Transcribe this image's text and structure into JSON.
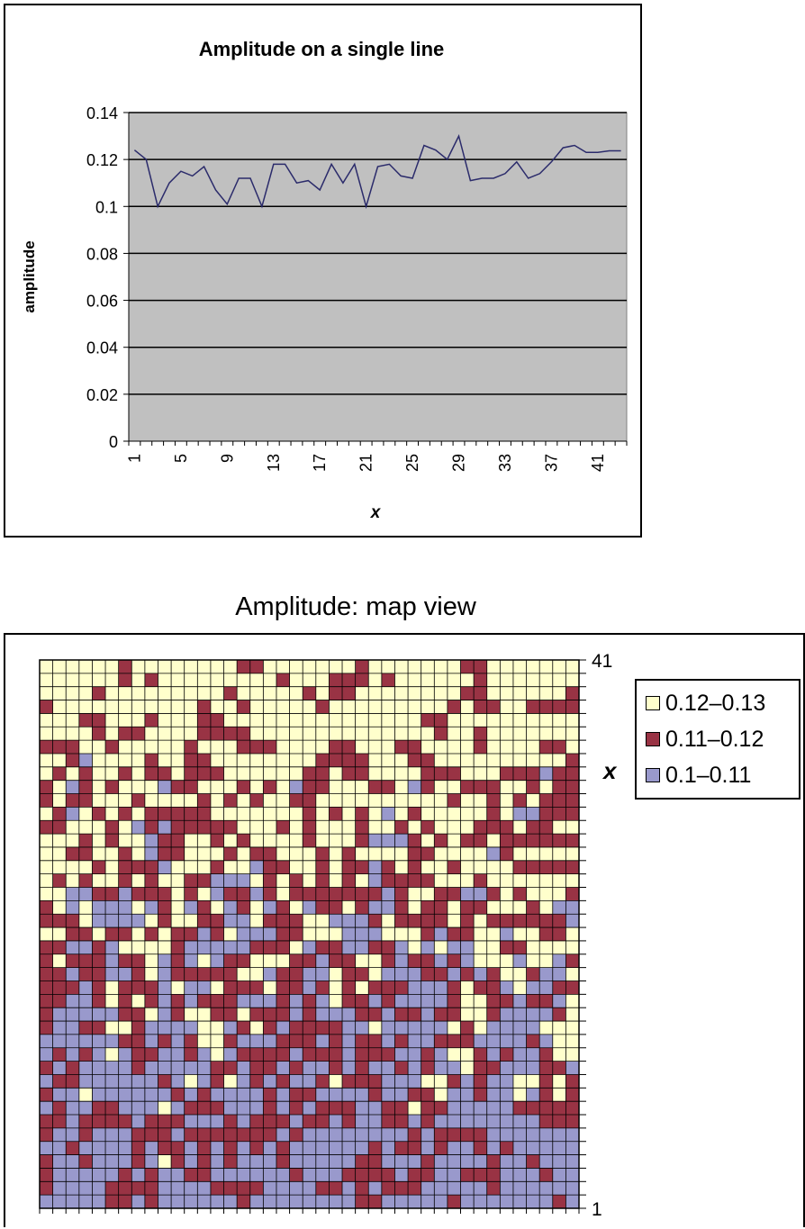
{
  "chart_data": [
    {
      "type": "line",
      "title": "Amplitude on a single line",
      "xlabel": "x",
      "ylabel": "amplitude",
      "ylim": [
        0,
        0.14
      ],
      "yticks": [
        "0",
        "0.02",
        "0.04",
        "0.06",
        "0.08",
        "0.1",
        "0.12",
        "0.14"
      ],
      "xticks": [
        "1",
        "5",
        "9",
        "13",
        "17",
        "21",
        "25",
        "29",
        "33",
        "37",
        "41"
      ],
      "grid": true,
      "x": [
        1,
        2,
        3,
        4,
        5,
        6,
        7,
        8,
        9,
        10,
        11,
        12,
        13,
        14,
        15,
        16,
        17,
        18,
        19,
        20,
        21,
        22,
        23,
        24,
        25,
        26,
        27,
        28,
        29,
        30,
        31,
        32,
        33,
        34,
        35,
        36,
        37,
        38,
        39,
        40,
        41,
        42,
        43
      ],
      "values": [
        0.124,
        0.12,
        0.1,
        0.11,
        0.115,
        0.113,
        0.117,
        0.107,
        0.101,
        0.112,
        0.112,
        0.1,
        0.118,
        0.118,
        0.11,
        0.111,
        0.107,
        0.118,
        0.11,
        0.118,
        0.1,
        0.117,
        0.118,
        0.113,
        0.112,
        0.126,
        0.124,
        0.12,
        0.13,
        0.111,
        0.112,
        0.112,
        0.114,
        0.119,
        0.112,
        0.114,
        0.119,
        0.125,
        0.126,
        0.123,
        0.123,
        0.1237,
        0.1237
      ],
      "colors": {
        "plot_bg": "#c0c0c0",
        "line": "#2b2b6b"
      }
    },
    {
      "type": "heatmap",
      "title": "Amplitude: map view",
      "ylabel": "x",
      "yticks": [
        "1",
        "41"
      ],
      "legend": [
        {
          "label": "0.12–0.13",
          "color": "#ffffcc"
        },
        {
          "label": "0.11–0.12",
          "color": "#993344"
        },
        {
          "label": "0.1–0.11",
          "color": "#9999cc"
        }
      ],
      "grid_size": 41,
      "legend_position": "right"
    }
  ]
}
